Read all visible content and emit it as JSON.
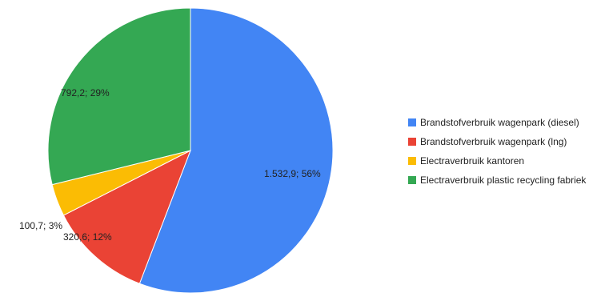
{
  "chart_data": {
    "type": "pie",
    "title": "",
    "legend_position": "right",
    "start_angle_deg": 0,
    "direction": "clockwise",
    "slices": [
      {
        "name": "Brandstofverbruik wagenpark (diesel)",
        "value": 1532.9,
        "percent": 56,
        "label": "1.532,9; 56%",
        "color": "#4285F4"
      },
      {
        "name": "Brandstofverbruik wagenpark (lng)",
        "value": 320.6,
        "percent": 12,
        "label": "320,6; 12%",
        "color": "#EA4335"
      },
      {
        "name": "Electraverbruik kantoren",
        "value": 100.7,
        "percent": 3,
        "label": "100,7; 3%",
        "color": "#FBBC04"
      },
      {
        "name": "Electraverbruik plastic recycling fabriek",
        "value": 792.2,
        "percent": 29,
        "label": "792,2; 29%",
        "color": "#34A853"
      }
    ]
  }
}
